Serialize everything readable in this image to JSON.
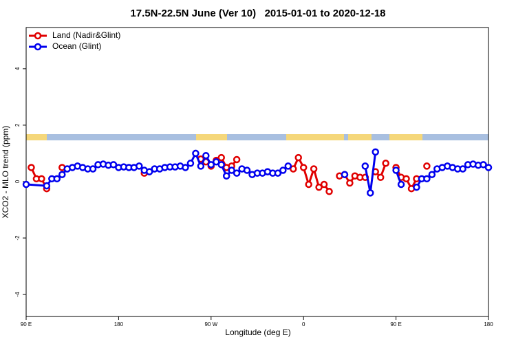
{
  "chart_data": {
    "type": "line",
    "title": "17.5N-22.5N June (Ver 10)   2015-01-01 to 2020-12-18",
    "x_label": "Longitude (deg E)",
    "y_label": "XCO2 - MLO trend (ppm)",
    "xlim": [
      90,
      540
    ],
    "ylim": [
      -4.78,
      5.46
    ],
    "xticks": [
      {
        "value": 90,
        "label": "90 E"
      },
      180,
      {
        "value": 270,
        "label": "90 W"
      },
      {
        "value": 360,
        "label": "0"
      },
      {
        "value": 450,
        "label": "90 E"
      },
      {
        "value": 540,
        "label": "180"
      }
    ],
    "yticks": [
      -4,
      -2,
      0,
      2,
      4
    ],
    "legend": "topleft",
    "series": [
      {
        "name": "Land (Nadir&Glint)",
        "color": "#e00000",
        "x": [
          95,
          100,
          105,
          110,
          115,
          125,
          130,
          205,
          210,
          260,
          265,
          270,
          275,
          280,
          285,
          290,
          295,
          300,
          350,
          355,
          360,
          365,
          370,
          375,
          380,
          385,
          390,
          395,
          400,
          405,
          410,
          415,
          420,
          425,
          430,
          435,
          440,
          445,
          450,
          455,
          460,
          465,
          470,
          475,
          480,
          485
        ],
        "values": [
          0.5,
          0.1,
          0.1,
          -0.25,
          null,
          0.5,
          null,
          0.3,
          null,
          0.8,
          0.7,
          0.55,
          0.75,
          0.85,
          0.5,
          0.55,
          0.78,
          null,
          0.45,
          0.85,
          0.5,
          -0.1,
          0.45,
          -0.2,
          -0.1,
          -0.35,
          null,
          0.2,
          0.25,
          -0.05,
          0.2,
          0.15,
          0.15,
          null,
          0.35,
          0.15,
          0.65,
          null,
          0.5,
          0.15,
          0.1,
          -0.25,
          0.1,
          null,
          0.55,
          null
        ]
      },
      {
        "name": "Ocean (Glint)",
        "color": "#0000ee",
        "x": [
          90,
          110,
          115,
          120,
          125,
          130,
          135,
          140,
          145,
          150,
          155,
          160,
          165,
          170,
          175,
          180,
          185,
          190,
          195,
          200,
          205,
          210,
          215,
          220,
          225,
          230,
          235,
          240,
          245,
          250,
          255,
          260,
          265,
          270,
          275,
          280,
          285,
          290,
          295,
          300,
          305,
          310,
          315,
          320,
          325,
          330,
          335,
          340,
          345,
          350,
          400,
          405,
          420,
          425,
          430,
          435,
          450,
          455,
          460,
          470,
          475,
          480,
          485,
          490,
          495,
          500,
          505,
          510,
          515,
          520,
          525,
          530,
          535,
          540
        ],
        "values": [
          -0.1,
          -0.15,
          0.1,
          0.1,
          0.25,
          0.45,
          0.5,
          0.55,
          0.5,
          0.45,
          0.45,
          0.6,
          0.62,
          0.58,
          0.6,
          0.5,
          0.52,
          0.5,
          0.5,
          0.55,
          0.4,
          0.35,
          0.45,
          0.45,
          0.5,
          0.52,
          0.52,
          0.55,
          0.5,
          0.65,
          1.0,
          0.55,
          0.92,
          0.6,
          0.7,
          0.6,
          0.2,
          0.4,
          0.3,
          0.45,
          0.4,
          0.25,
          0.3,
          0.3,
          0.35,
          0.3,
          0.3,
          0.4,
          0.55,
          null,
          0.25,
          null,
          0.55,
          -0.4,
          1.05,
          null,
          0.4,
          -0.1,
          null,
          -0.2,
          0.1,
          0.1,
          0.25,
          0.45,
          0.5,
          0.55,
          0.5,
          0.45,
          0.45,
          0.6,
          0.62,
          0.58,
          0.6,
          0.5
        ]
      }
    ]
  }
}
